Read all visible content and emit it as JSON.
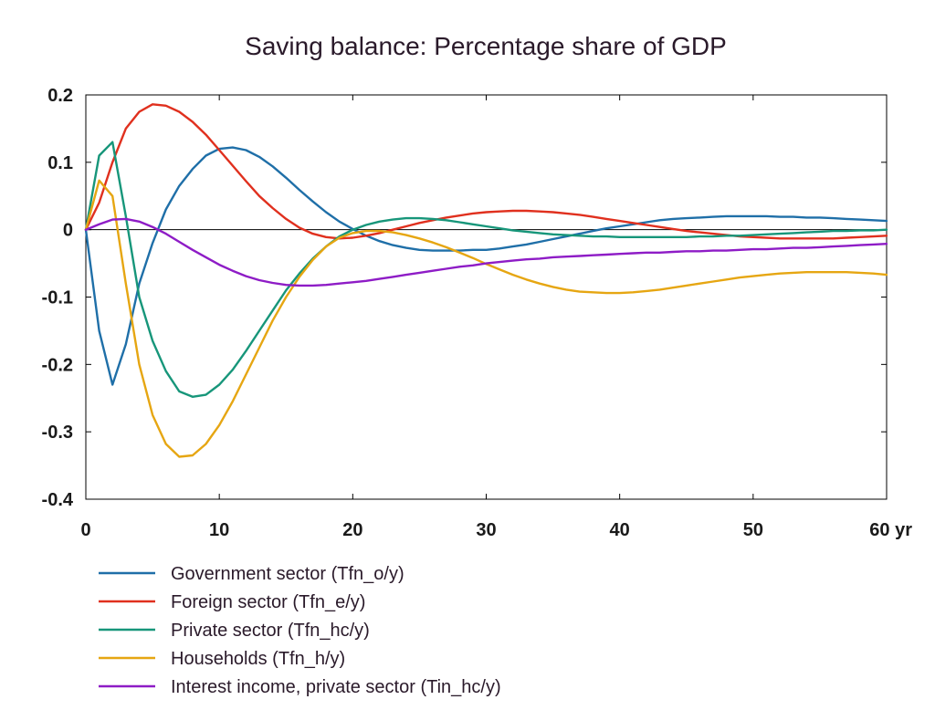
{
  "chart_data": {
    "type": "line",
    "title": "Saving balance: Percentage share of GDP",
    "xlabel": "",
    "ylabel": "",
    "x_unit": "yr",
    "xlim": [
      0,
      60
    ],
    "ylim": [
      -0.4,
      0.2
    ],
    "x_ticks": [
      "0",
      "10",
      "20",
      "30",
      "40",
      "50",
      "60 yr"
    ],
    "y_ticks": [
      "0.2",
      "0.1",
      "0",
      "-0.1",
      "-0.2",
      "-0.3",
      "-0.4"
    ],
    "grid": false,
    "zero_line": true,
    "legend_position": "bottom-left",
    "x": [
      0,
      1,
      2,
      3,
      4,
      5,
      6,
      7,
      8,
      9,
      10,
      11,
      12,
      13,
      14,
      15,
      16,
      17,
      18,
      19,
      20,
      21,
      22,
      23,
      24,
      25,
      26,
      27,
      28,
      29,
      30,
      31,
      32,
      33,
      34,
      35,
      36,
      37,
      38,
      39,
      40,
      41,
      42,
      43,
      44,
      45,
      46,
      47,
      48,
      49,
      50,
      51,
      52,
      53,
      54,
      55,
      56,
      57,
      58,
      59,
      60
    ],
    "series": [
      {
        "name": "Government sector (Tfn_o/y)",
        "color": "#1f6fa8",
        "values": [
          0,
          -0.15,
          -0.23,
          -0.17,
          -0.08,
          -0.02,
          0.03,
          0.065,
          0.09,
          0.11,
          0.12,
          0.122,
          0.118,
          0.108,
          0.094,
          0.077,
          0.059,
          0.042,
          0.026,
          0.012,
          0.001,
          -0.009,
          -0.017,
          -0.023,
          -0.027,
          -0.03,
          -0.031,
          -0.031,
          -0.031,
          -0.03,
          -0.03,
          -0.028,
          -0.025,
          -0.022,
          -0.018,
          -0.014,
          -0.01,
          -0.006,
          -0.002,
          0.002,
          0.005,
          0.008,
          0.011,
          0.014,
          0.016,
          0.017,
          0.018,
          0.019,
          0.02,
          0.02,
          0.02,
          0.02,
          0.019,
          0.019,
          0.018,
          0.018,
          0.017,
          0.016,
          0.015,
          0.014,
          0.013
        ]
      },
      {
        "name": "Foreign sector (Tfn_e/y)",
        "color": "#e0301e",
        "values": [
          0,
          0.04,
          0.1,
          0.15,
          0.175,
          0.186,
          0.184,
          0.175,
          0.16,
          0.141,
          0.118,
          0.095,
          0.072,
          0.05,
          0.032,
          0.016,
          0.003,
          -0.006,
          -0.011,
          -0.013,
          -0.012,
          -0.009,
          -0.005,
          0,
          0.005,
          0.01,
          0.014,
          0.018,
          0.021,
          0.024,
          0.026,
          0.027,
          0.028,
          0.028,
          0.027,
          0.026,
          0.024,
          0.022,
          0.019,
          0.016,
          0.013,
          0.01,
          0.007,
          0.004,
          0.001,
          -0.002,
          -0.004,
          -0.006,
          -0.008,
          -0.01,
          -0.011,
          -0.012,
          -0.013,
          -0.013,
          -0.013,
          -0.013,
          -0.013,
          -0.012,
          -0.011,
          -0.01,
          -0.009
        ]
      },
      {
        "name": "Private sector (Tfn_hc/y)",
        "color": "#17967a",
        "values": [
          0,
          0.11,
          0.13,
          0.02,
          -0.1,
          -0.165,
          -0.21,
          -0.24,
          -0.248,
          -0.245,
          -0.23,
          -0.208,
          -0.18,
          -0.15,
          -0.12,
          -0.09,
          -0.065,
          -0.043,
          -0.025,
          -0.01,
          0,
          0.007,
          0.012,
          0.015,
          0.017,
          0.017,
          0.016,
          0.014,
          0.011,
          0.008,
          0.005,
          0.002,
          -0.001,
          -0.003,
          -0.005,
          -0.007,
          -0.008,
          -0.009,
          -0.01,
          -0.01,
          -0.011,
          -0.011,
          -0.011,
          -0.011,
          -0.011,
          -0.011,
          -0.01,
          -0.01,
          -0.009,
          -0.009,
          -0.008,
          -0.007,
          -0.006,
          -0.005,
          -0.004,
          -0.003,
          -0.002,
          -0.002,
          -0.001,
          -0.001,
          0
        ]
      },
      {
        "name": "Households (Tfn_h/y)",
        "color": "#e6a612",
        "values": [
          0,
          0.073,
          0.05,
          -0.08,
          -0.2,
          -0.275,
          -0.318,
          -0.337,
          -0.335,
          -0.318,
          -0.29,
          -0.255,
          -0.215,
          -0.175,
          -0.135,
          -0.1,
          -0.07,
          -0.045,
          -0.025,
          -0.012,
          -0.005,
          -0.002,
          -0.002,
          -0.004,
          -0.008,
          -0.013,
          -0.019,
          -0.026,
          -0.034,
          -0.042,
          -0.051,
          -0.059,
          -0.067,
          -0.074,
          -0.08,
          -0.085,
          -0.089,
          -0.092,
          -0.093,
          -0.094,
          -0.094,
          -0.093,
          -0.091,
          -0.089,
          -0.086,
          -0.083,
          -0.08,
          -0.077,
          -0.074,
          -0.071,
          -0.069,
          -0.067,
          -0.065,
          -0.064,
          -0.063,
          -0.063,
          -0.063,
          -0.063,
          -0.064,
          -0.065,
          -0.067
        ]
      },
      {
        "name": "Interest income, private sector (Tin_hc/y)",
        "color": "#8e1cc6",
        "values": [
          0,
          0.008,
          0.015,
          0.016,
          0.012,
          0.004,
          -0.006,
          -0.018,
          -0.03,
          -0.041,
          -0.052,
          -0.061,
          -0.069,
          -0.075,
          -0.079,
          -0.082,
          -0.083,
          -0.083,
          -0.082,
          -0.08,
          -0.078,
          -0.076,
          -0.073,
          -0.07,
          -0.067,
          -0.064,
          -0.061,
          -0.058,
          -0.055,
          -0.053,
          -0.05,
          -0.048,
          -0.046,
          -0.044,
          -0.043,
          -0.041,
          -0.04,
          -0.039,
          -0.038,
          -0.037,
          -0.036,
          -0.035,
          -0.034,
          -0.034,
          -0.033,
          -0.032,
          -0.032,
          -0.031,
          -0.031,
          -0.03,
          -0.029,
          -0.029,
          -0.028,
          -0.027,
          -0.027,
          -0.026,
          -0.025,
          -0.024,
          -0.023,
          -0.022,
          -0.021
        ]
      }
    ]
  }
}
